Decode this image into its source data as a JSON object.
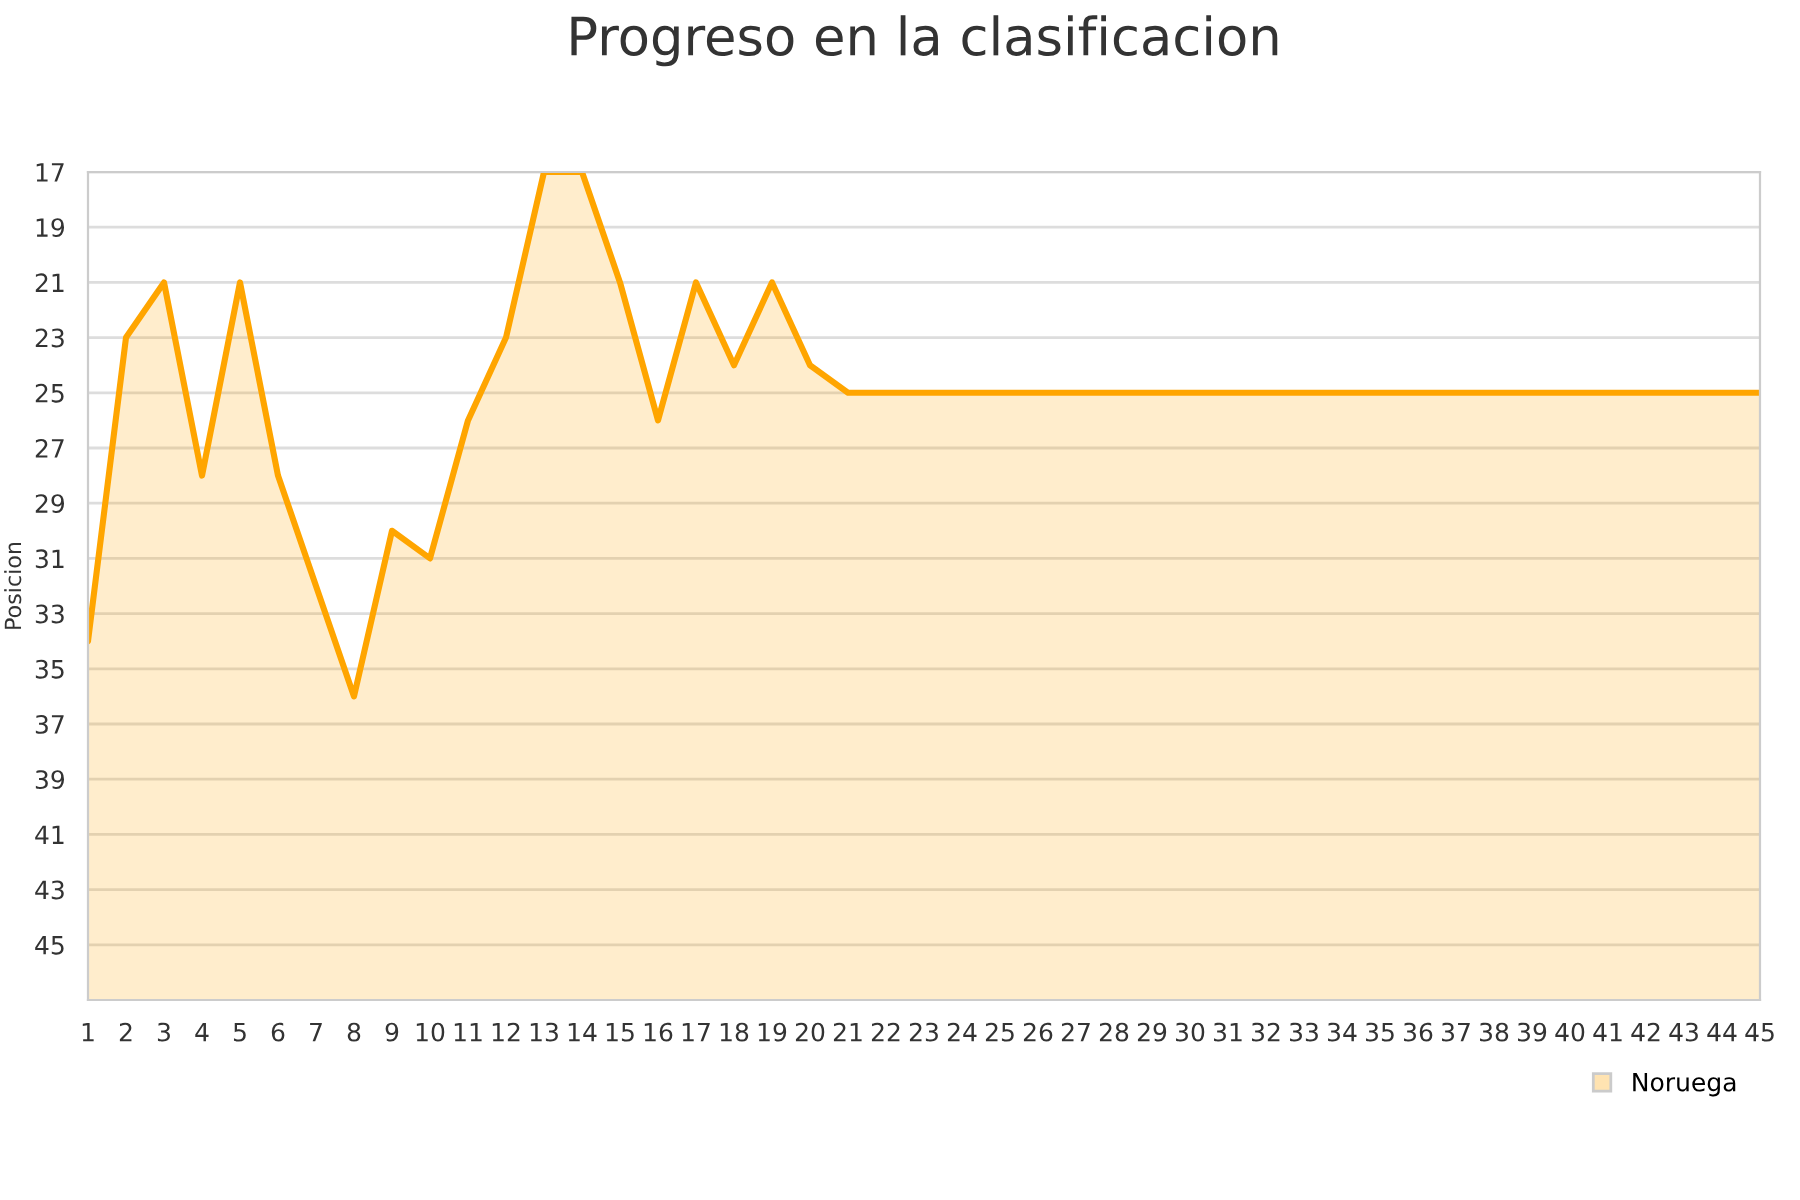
{
  "chart_data": {
    "type": "area",
    "title": "Progreso en la clasificacion",
    "ylabel": "Posicion",
    "x": [
      1,
      2,
      3,
      4,
      5,
      6,
      7,
      8,
      9,
      10,
      11,
      12,
      13,
      14,
      15,
      16,
      17,
      18,
      19,
      20,
      21,
      22,
      23,
      24,
      25,
      26,
      27,
      28,
      29,
      30,
      31,
      32,
      33,
      34,
      35,
      36,
      37,
      38,
      39,
      40,
      41,
      42,
      43,
      44,
      45
    ],
    "series": [
      {
        "name": "Noruega",
        "color": "#ffa500",
        "values": [
          34,
          23,
          21,
          28,
          21,
          28,
          32,
          36,
          30,
          31,
          26,
          23,
          17,
          17,
          21,
          26,
          21,
          24,
          21,
          24,
          25,
          25,
          25,
          25,
          25,
          25,
          25,
          25,
          25,
          25,
          25,
          25,
          25,
          25,
          25,
          25,
          25,
          25,
          25,
          25,
          25,
          25,
          25,
          25,
          25
        ]
      }
    ],
    "xlim": [
      1,
      45
    ],
    "xticks": [
      1,
      2,
      3,
      4,
      5,
      6,
      7,
      8,
      9,
      10,
      11,
      12,
      13,
      14,
      15,
      16,
      17,
      18,
      19,
      20,
      21,
      22,
      23,
      24,
      25,
      26,
      27,
      28,
      29,
      30,
      31,
      32,
      33,
      34,
      35,
      36,
      37,
      38,
      39,
      40,
      41,
      42,
      43,
      44,
      45
    ],
    "ylim": [
      47,
      17
    ],
    "yticks": [
      17,
      19,
      21,
      23,
      25,
      27,
      29,
      31,
      33,
      35,
      37,
      39,
      41,
      43,
      45
    ],
    "grid": "y",
    "legend": "bottom right"
  }
}
